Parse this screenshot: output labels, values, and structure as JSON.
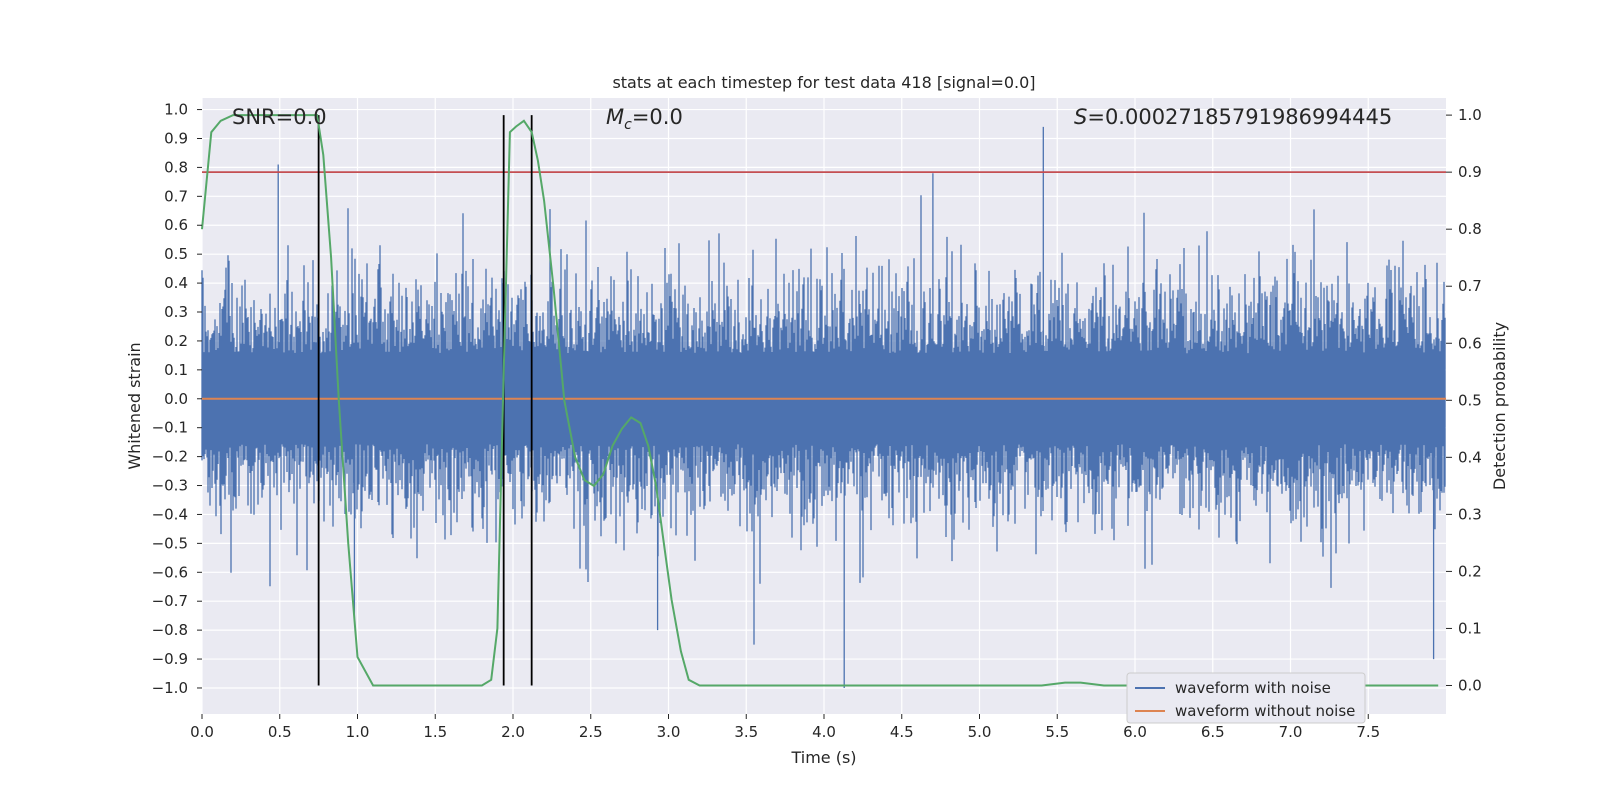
{
  "chart_data": {
    "type": "line",
    "title": "stats at each timestep for test data 418 [signal=0.0]",
    "xlabel": "Time (s)",
    "ylabel_left": "Whitened strain",
    "ylabel_right": "Detection probability",
    "xlim": [
      0.0,
      8.0
    ],
    "ylim_left": [
      -1.09,
      1.04
    ],
    "ylim_right": [
      -0.05,
      1.03
    ],
    "x_ticks": [
      0.0,
      0.5,
      1.0,
      1.5,
      2.0,
      2.5,
      3.0,
      3.5,
      4.0,
      4.5,
      5.0,
      5.5,
      6.0,
      6.5,
      7.0,
      7.5
    ],
    "x_tick_labels": [
      "0.0",
      "0.5",
      "1.0",
      "1.5",
      "2.0",
      "2.5",
      "3.0",
      "3.5",
      "4.0",
      "4.5",
      "5.0",
      "5.5",
      "6.0",
      "6.5",
      "7.0",
      "7.5"
    ],
    "y_left_ticks": [
      1.0,
      0.9,
      0.8,
      0.7,
      0.6,
      0.5,
      0.4,
      0.3,
      0.2,
      0.1,
      0.0,
      -0.1,
      -0.2,
      -0.3,
      -0.4,
      -0.5,
      -0.6,
      -0.7,
      -0.8,
      -0.9,
      -1.0
    ],
    "y_left_tick_labels": [
      "1.0",
      "0.9",
      "0.8",
      "0.7",
      "0.6",
      "0.5",
      "0.4",
      "0.3",
      "0.2",
      "0.1",
      "0.0",
      "−0.1",
      "−0.2",
      "−0.3",
      "−0.4",
      "−0.5",
      "−0.6",
      "−0.7",
      "−0.8",
      "−0.9",
      "−1.0"
    ],
    "y_right_ticks": [
      1.0,
      0.9,
      0.8,
      0.7,
      0.6,
      0.5,
      0.4,
      0.3,
      0.2,
      0.1,
      0.0
    ],
    "y_right_tick_labels": [
      "1.0",
      "0.9",
      "0.8",
      "0.7",
      "0.6",
      "0.5",
      "0.4",
      "0.3",
      "0.2",
      "0.1",
      "0.0"
    ],
    "annotations": {
      "snr": "SNR=0.0",
      "mc_symbol": "M",
      "mc_sub": "c",
      "mc_value": "=0.0",
      "s_symbol": "S",
      "s_value": "=0.00027185791986994445"
    },
    "threshold": {
      "value": 0.9,
      "axis": "right",
      "color": "#c44e52"
    },
    "vertical_markers": [
      0.75,
      1.94,
      2.12
    ],
    "noise_envelope": {
      "description_free_stats": true,
      "typical_amplitude": 0.35,
      "max_peak": 0.95,
      "min_trough": -1.0
    },
    "notable_peaks": [
      {
        "x": 0.49,
        "y": 0.81
      },
      {
        "x": 4.7,
        "y": 0.78
      },
      {
        "x": 5.41,
        "y": 0.94
      },
      {
        "x": 4.13,
        "y": -1.0
      },
      {
        "x": 7.92,
        "y": -0.9
      },
      {
        "x": 3.55,
        "y": -0.85
      },
      {
        "x": 2.93,
        "y": -0.8
      },
      {
        "x": 0.98,
        "y": -0.76
      }
    ],
    "series": [
      {
        "name": "waveform with noise",
        "axis": "left",
        "color": "#4c72b0"
      },
      {
        "name": "waveform without noise",
        "axis": "left",
        "color": "#dd8452",
        "x": [
          0.0,
          8.0
        ],
        "y": [
          0.0,
          0.0
        ]
      },
      {
        "name": "detection probability",
        "axis": "right",
        "color": "#55a868",
        "x": [
          0.0,
          0.06,
          0.12,
          0.2,
          0.3,
          0.4,
          0.5,
          0.6,
          0.7,
          0.74,
          0.78,
          0.83,
          0.88,
          0.94,
          1.0,
          1.1,
          1.3,
          1.6,
          1.8,
          1.86,
          1.9,
          1.94,
          1.98,
          2.02,
          2.07,
          2.12,
          2.16,
          2.2,
          2.26,
          2.33,
          2.4,
          2.46,
          2.52,
          2.58,
          2.64,
          2.7,
          2.76,
          2.82,
          2.87,
          2.92,
          2.97,
          3.02,
          3.08,
          3.13,
          3.2,
          3.3,
          3.5,
          4.0,
          4.5,
          5.0,
          5.4,
          5.55,
          5.65,
          5.8,
          6.0,
          6.5,
          7.0,
          7.5,
          7.95
        ],
        "y": [
          0.8,
          0.97,
          0.99,
          1.0,
          1.0,
          1.0,
          1.0,
          1.0,
          1.0,
          1.0,
          0.93,
          0.75,
          0.5,
          0.25,
          0.05,
          0.0,
          0.0,
          0.0,
          0.0,
          0.01,
          0.1,
          0.55,
          0.97,
          0.98,
          0.99,
          0.97,
          0.92,
          0.85,
          0.7,
          0.5,
          0.4,
          0.36,
          0.35,
          0.37,
          0.42,
          0.45,
          0.47,
          0.46,
          0.42,
          0.35,
          0.25,
          0.15,
          0.06,
          0.01,
          0.0,
          0.0,
          0.0,
          0.0,
          0.0,
          0.0,
          0.0,
          0.005,
          0.005,
          0.0,
          0.0,
          0.0,
          0.0,
          0.0,
          0.0
        ]
      }
    ],
    "legend": {
      "placement": "lower-right",
      "entries": [
        {
          "label": "waveform with noise",
          "color": "#4c72b0"
        },
        {
          "label": "waveform without noise",
          "color": "#dd8452"
        }
      ]
    },
    "colors": {
      "axes_bg": "#eaeaf2",
      "grid": "#ffffff",
      "marker": "#000000"
    }
  }
}
